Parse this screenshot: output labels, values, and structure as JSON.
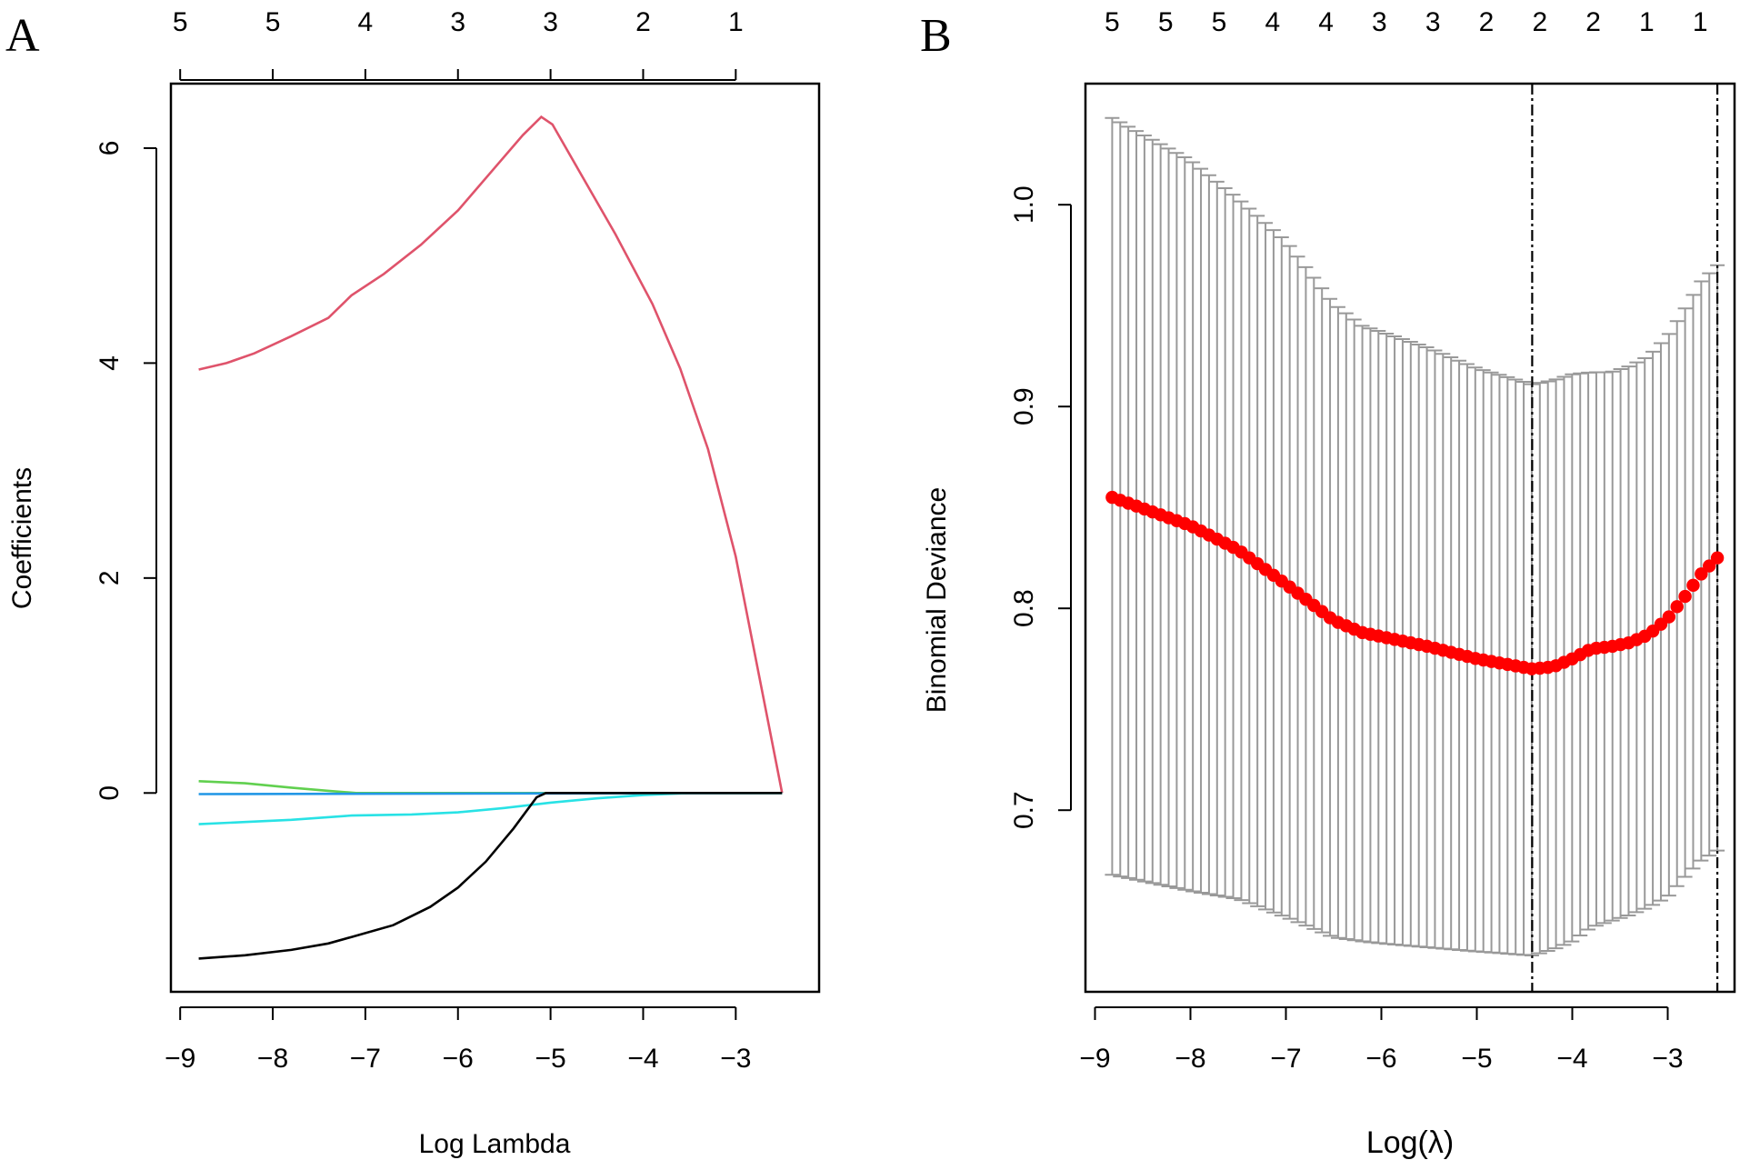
{
  "chart_data": [
    {
      "panel_label": "A",
      "type": "line",
      "title": "",
      "xlabel": "Log Lambda",
      "ylabel": "Coefficients",
      "xlim": [
        -9.1,
        -2.1
      ],
      "ylim": [
        -1.85,
        6.6
      ],
      "x_ticks": [
        -9,
        -8,
        -7,
        -6,
        -5,
        -4,
        -3
      ],
      "x_tick_labels": [
        "−9",
        "−8",
        "−7",
        "−6",
        "−5",
        "−4",
        "−3"
      ],
      "y_ticks": [
        0,
        2,
        4,
        6
      ],
      "y_tick_labels": [
        "0",
        "2",
        "4",
        "6"
      ],
      "top_axis": {
        "ticks": [
          -9,
          -8,
          -7,
          -6,
          -5,
          -4,
          -3
        ],
        "labels": [
          "5",
          "5",
          "4",
          "3",
          "3",
          "2",
          "1"
        ]
      },
      "series": [
        {
          "name": "red",
          "color": "#DF536B",
          "points": [
            [
              -8.8,
              3.94
            ],
            [
              -8.5,
              4.0
            ],
            [
              -8.2,
              4.09
            ],
            [
              -7.8,
              4.25
            ],
            [
              -7.4,
              4.42
            ],
            [
              -7.15,
              4.63
            ],
            [
              -6.8,
              4.83
            ],
            [
              -6.4,
              5.1
            ],
            [
              -6.0,
              5.42
            ],
            [
              -5.6,
              5.82
            ],
            [
              -5.3,
              6.12
            ],
            [
              -5.1,
              6.29
            ],
            [
              -4.98,
              6.22
            ],
            [
              -4.7,
              5.8
            ],
            [
              -4.3,
              5.2
            ],
            [
              -3.9,
              4.55
            ],
            [
              -3.6,
              3.95
            ],
            [
              -3.3,
              3.2
            ],
            [
              -3.0,
              2.2
            ],
            [
              -2.75,
              1.1
            ],
            [
              -2.5,
              0.0
            ]
          ]
        },
        {
          "name": "green",
          "color": "#61D04F",
          "points": [
            [
              -8.8,
              0.11
            ],
            [
              -8.3,
              0.09
            ],
            [
              -7.8,
              0.05
            ],
            [
              -7.4,
              0.02
            ],
            [
              -7.1,
              0.0
            ],
            [
              -2.5,
              0.0
            ]
          ]
        },
        {
          "name": "blue",
          "color": "#2297E6",
          "points": [
            [
              -8.8,
              -0.01
            ],
            [
              -2.5,
              0.0
            ]
          ]
        },
        {
          "name": "cyan",
          "color": "#28E2E5",
          "points": [
            [
              -8.8,
              -0.29
            ],
            [
              -8.3,
              -0.27
            ],
            [
              -7.8,
              -0.25
            ],
            [
              -7.15,
              -0.21
            ],
            [
              -6.5,
              -0.2
            ],
            [
              -6.0,
              -0.18
            ],
            [
              -5.5,
              -0.14
            ],
            [
              -5.0,
              -0.09
            ],
            [
              -4.5,
              -0.05
            ],
            [
              -4.0,
              -0.02
            ],
            [
              -3.5,
              0.0
            ],
            [
              -2.5,
              0.0
            ]
          ]
        },
        {
          "name": "black",
          "color": "#000000",
          "points": [
            [
              -8.8,
              -1.54
            ],
            [
              -8.3,
              -1.51
            ],
            [
              -7.8,
              -1.46
            ],
            [
              -7.4,
              -1.4
            ],
            [
              -7.15,
              -1.34
            ],
            [
              -6.7,
              -1.23
            ],
            [
              -6.3,
              -1.06
            ],
            [
              -6.0,
              -0.88
            ],
            [
              -5.7,
              -0.64
            ],
            [
              -5.4,
              -0.33
            ],
            [
              -5.15,
              -0.04
            ],
            [
              -5.05,
              0.0
            ],
            [
              -2.5,
              0.0
            ]
          ]
        }
      ]
    },
    {
      "panel_label": "B",
      "type": "scatter",
      "title": "",
      "xlabel": "Log(λ)",
      "ylabel": "Binomial Deviance",
      "xlim": [
        -9.1,
        -2.3
      ],
      "ylim": [
        0.61,
        1.06
      ],
      "x_ticks": [
        -9,
        -8,
        -7,
        -6,
        -5,
        -4,
        -3
      ],
      "x_tick_labels": [
        "−9",
        "−8",
        "−7",
        "−6",
        "−5",
        "−4",
        "−3"
      ],
      "y_ticks": [
        0.7,
        0.8,
        0.9,
        1.0
      ],
      "y_tick_labels": [
        "0.7",
        "0.8",
        "0.9",
        "1.0"
      ],
      "top_axis": {
        "ticks": [
          -8.82,
          -8.26,
          -7.7,
          -7.14,
          -6.58,
          -6.02,
          -5.46,
          -4.9,
          -4.34,
          -3.78,
          -3.22,
          -2.66
        ],
        "labels": [
          "5",
          "5",
          "5",
          "4",
          "4",
          "3",
          "3",
          "2",
          "2",
          "2",
          "1",
          "1"
        ]
      },
      "lambda_min": -4.42,
      "lambda_1se": -2.48,
      "point_color": "#FF0000",
      "errorbar_color": "#999999",
      "curve": {
        "x": [
          -8.82,
          -8.0,
          -7.5,
          -7.0,
          -6.5,
          -6.2,
          -6.0,
          -5.5,
          -5.0,
          -4.42,
          -4.2,
          -4.0,
          -3.8,
          -3.6,
          -3.4,
          -3.2,
          -3.0,
          -2.8,
          -2.65,
          -2.48
        ],
        "mean": [
          0.855,
          0.841,
          0.829,
          0.812,
          0.794,
          0.788,
          0.786,
          0.781,
          0.775,
          0.77,
          0.771,
          0.775,
          0.78,
          0.781,
          0.783,
          0.787,
          0.795,
          0.807,
          0.817,
          0.825
        ],
        "upper": [
          1.043,
          1.022,
          1.003,
          0.982,
          0.951,
          0.94,
          0.937,
          0.929,
          0.919,
          0.911,
          0.913,
          0.916,
          0.917,
          0.917,
          0.92,
          0.925,
          0.935,
          0.95,
          0.962,
          0.97
        ],
        "lower": [
          0.668,
          0.66,
          0.656,
          0.647,
          0.637,
          0.635,
          0.634,
          0.632,
          0.63,
          0.628,
          0.631,
          0.635,
          0.642,
          0.645,
          0.648,
          0.652,
          0.657,
          0.668,
          0.675,
          0.68
        ]
      },
      "n_points": 76
    }
  ]
}
